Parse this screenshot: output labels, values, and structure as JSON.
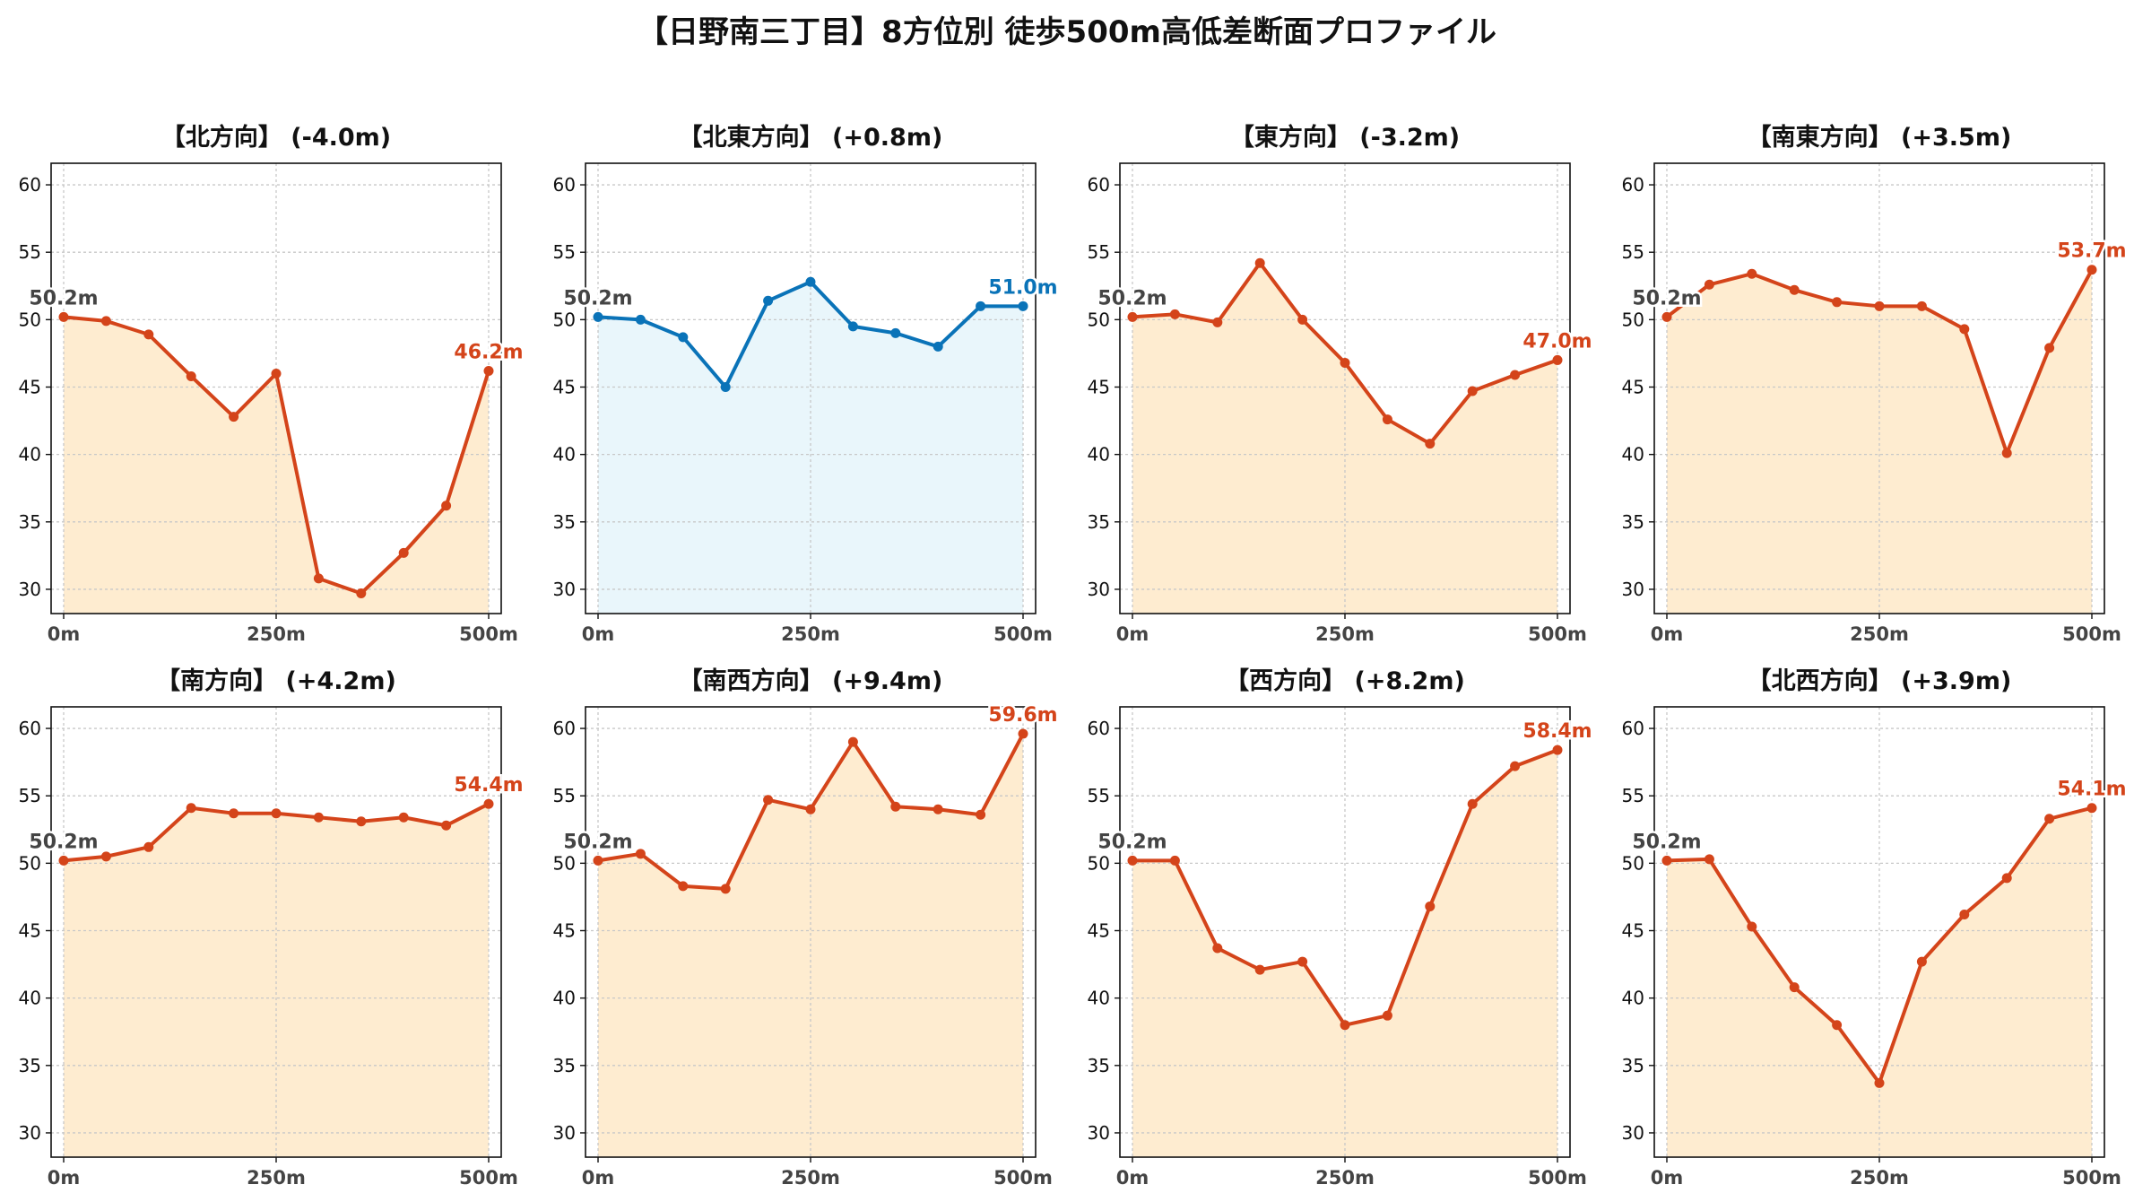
{
  "title": "【日野南三丁目】8方位別 徒歩500m高低差断面プロファイル",
  "colors": {
    "up": "#d4441a",
    "flat": "#0a73b8",
    "fill_up": "#feecd0",
    "fill_flat": "#e9f6fb",
    "start_label": "#444444"
  },
  "chart_data": [
    {
      "type": "area",
      "title": "【北方向】 (-4.0m)",
      "color": "up",
      "x": [
        0,
        50,
        100,
        150,
        200,
        250,
        300,
        350,
        400,
        450,
        500
      ],
      "y": [
        50.2,
        49.9,
        48.9,
        45.8,
        42.8,
        46.0,
        30.8,
        29.7,
        32.7,
        36.2,
        46.2
      ],
      "start_label": "50.2m",
      "end_label": "46.2m",
      "xticks": [
        "0m",
        "250m",
        "500m"
      ],
      "ylim": [
        28.2,
        61.6
      ],
      "yticks": [
        30,
        35,
        40,
        45,
        50,
        55,
        60
      ],
      "grid": true
    },
    {
      "type": "area",
      "title": "【北東方向】 (+0.8m)",
      "color": "flat",
      "x": [
        0,
        50,
        100,
        150,
        200,
        250,
        300,
        350,
        400,
        450,
        500
      ],
      "y": [
        50.2,
        50.0,
        48.7,
        45.0,
        51.4,
        52.8,
        49.5,
        49.0,
        48.0,
        51.0,
        51.0
      ],
      "start_label": "50.2m",
      "end_label": "51.0m",
      "xticks": [
        "0m",
        "250m",
        "500m"
      ],
      "ylim": [
        28.2,
        61.6
      ],
      "yticks": [
        30,
        35,
        40,
        45,
        50,
        55,
        60
      ],
      "grid": true
    },
    {
      "type": "area",
      "title": "【東方向】 (-3.2m)",
      "color": "up",
      "x": [
        0,
        50,
        100,
        150,
        200,
        250,
        300,
        350,
        400,
        450,
        500
      ],
      "y": [
        50.2,
        50.4,
        49.8,
        54.2,
        50.0,
        46.8,
        42.6,
        40.8,
        44.7,
        45.9,
        47.0
      ],
      "start_label": "50.2m",
      "end_label": "47.0m",
      "xticks": [
        "0m",
        "250m",
        "500m"
      ],
      "ylim": [
        28.2,
        61.6
      ],
      "yticks": [
        30,
        35,
        40,
        45,
        50,
        55,
        60
      ],
      "grid": true
    },
    {
      "type": "area",
      "title": "【南東方向】 (+3.5m)",
      "color": "up",
      "x": [
        0,
        50,
        100,
        150,
        200,
        250,
        300,
        350,
        400,
        450,
        500
      ],
      "y": [
        50.2,
        52.6,
        53.4,
        52.2,
        51.3,
        51.0,
        51.0,
        49.3,
        40.1,
        47.9,
        53.7
      ],
      "start_label": "50.2m",
      "end_label": "53.7m",
      "xticks": [
        "0m",
        "250m",
        "500m"
      ],
      "ylim": [
        28.2,
        61.6
      ],
      "yticks": [
        30,
        35,
        40,
        45,
        50,
        55,
        60
      ],
      "grid": true
    },
    {
      "type": "area",
      "title": "【南方向】 (+4.2m)",
      "color": "up",
      "x": [
        0,
        50,
        100,
        150,
        200,
        250,
        300,
        350,
        400,
        450,
        500
      ],
      "y": [
        50.2,
        50.5,
        51.2,
        54.1,
        53.7,
        53.7,
        53.4,
        53.1,
        53.4,
        52.8,
        54.4
      ],
      "start_label": "50.2m",
      "end_label": "54.4m",
      "xticks": [
        "0m",
        "250m",
        "500m"
      ],
      "ylim": [
        28.2,
        61.6
      ],
      "yticks": [
        30,
        35,
        40,
        45,
        50,
        55,
        60
      ],
      "grid": true
    },
    {
      "type": "area",
      "title": "【南西方向】 (+9.4m)",
      "color": "up",
      "x": [
        0,
        50,
        100,
        150,
        200,
        250,
        300,
        350,
        400,
        450,
        500
      ],
      "y": [
        50.2,
        50.7,
        48.3,
        48.1,
        54.7,
        54.0,
        59.0,
        54.2,
        54.0,
        53.6,
        59.6
      ],
      "start_label": "50.2m",
      "end_label": "59.6m",
      "xticks": [
        "0m",
        "250m",
        "500m"
      ],
      "ylim": [
        28.2,
        61.6
      ],
      "yticks": [
        30,
        35,
        40,
        45,
        50,
        55,
        60
      ],
      "grid": true
    },
    {
      "type": "area",
      "title": "【西方向】 (+8.2m)",
      "color": "up",
      "x": [
        0,
        50,
        100,
        150,
        200,
        250,
        300,
        350,
        400,
        450,
        500
      ],
      "y": [
        50.2,
        50.2,
        43.7,
        42.1,
        42.7,
        38.0,
        38.7,
        46.8,
        54.4,
        57.2,
        58.4
      ],
      "start_label": "50.2m",
      "end_label": "58.4m",
      "xticks": [
        "0m",
        "250m",
        "500m"
      ],
      "ylim": [
        28.2,
        61.6
      ],
      "yticks": [
        30,
        35,
        40,
        45,
        50,
        55,
        60
      ],
      "grid": true
    },
    {
      "type": "area",
      "title": "【北西方向】 (+3.9m)",
      "color": "up",
      "x": [
        0,
        50,
        100,
        150,
        200,
        250,
        300,
        350,
        400,
        450,
        500
      ],
      "y": [
        50.2,
        50.3,
        45.3,
        40.8,
        38.0,
        33.7,
        42.7,
        46.2,
        48.9,
        53.3,
        54.1
      ],
      "start_label": "50.2m",
      "end_label": "54.1m",
      "xticks": [
        "0m",
        "250m",
        "500m"
      ],
      "ylim": [
        28.2,
        61.6
      ],
      "yticks": [
        30,
        35,
        40,
        45,
        50,
        55,
        60
      ],
      "grid": true
    }
  ]
}
